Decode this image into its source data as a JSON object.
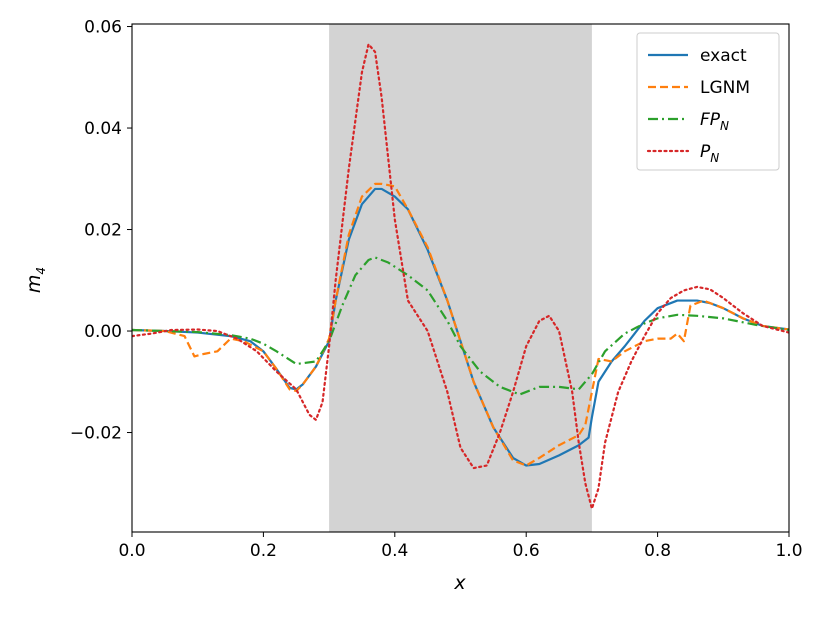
{
  "chart_data": {
    "type": "line",
    "xlabel": "x",
    "ylabel": "m",
    "ylabel_sub": "4",
    "xlim": [
      0.0,
      1.0
    ],
    "ylim": [
      -0.0396,
      0.0605
    ],
    "x_ticks": [
      0.0,
      0.2,
      0.4,
      0.6,
      0.8,
      1.0
    ],
    "x_tick_labels": [
      "0.0",
      "0.2",
      "0.4",
      "0.6",
      "0.8",
      "1.0"
    ],
    "y_ticks": [
      -0.02,
      0.0,
      0.02,
      0.04,
      0.06
    ],
    "y_tick_labels": [
      "−0.02",
      "0.00",
      "0.02",
      "0.04",
      "0.06"
    ],
    "shaded_region": {
      "x": [
        0.3,
        0.7
      ],
      "color": "#d3d3d3"
    },
    "legend": {
      "placement": "top-right"
    },
    "series": [
      {
        "name": "exact",
        "name_main": "exact",
        "name_sub": "",
        "color": "#1f77b4",
        "dash": "solid",
        "points": [
          [
            0.0,
            0.0002
          ],
          [
            0.05,
            0.0
          ],
          [
            0.1,
            -0.0003
          ],
          [
            0.15,
            -0.001
          ],
          [
            0.18,
            -0.002
          ],
          [
            0.2,
            -0.004
          ],
          [
            0.22,
            -0.0075
          ],
          [
            0.24,
            -0.0112
          ],
          [
            0.25,
            -0.0115
          ],
          [
            0.26,
            -0.0105
          ],
          [
            0.28,
            -0.007
          ],
          [
            0.3,
            -0.002
          ],
          [
            0.31,
            0.006
          ],
          [
            0.33,
            0.018
          ],
          [
            0.35,
            0.025
          ],
          [
            0.37,
            0.028
          ],
          [
            0.38,
            0.028
          ],
          [
            0.4,
            0.0265
          ],
          [
            0.42,
            0.024
          ],
          [
            0.45,
            0.016
          ],
          [
            0.48,
            0.006
          ],
          [
            0.5,
            -0.002
          ],
          [
            0.52,
            -0.01
          ],
          [
            0.55,
            -0.019
          ],
          [
            0.58,
            -0.025
          ],
          [
            0.6,
            -0.0265
          ],
          [
            0.62,
            -0.0262
          ],
          [
            0.65,
            -0.0245
          ],
          [
            0.68,
            -0.0225
          ],
          [
            0.695,
            -0.021
          ],
          [
            0.7,
            -0.017
          ],
          [
            0.71,
            -0.01
          ],
          [
            0.73,
            -0.006
          ],
          [
            0.75,
            -0.003
          ],
          [
            0.78,
            0.002
          ],
          [
            0.8,
            0.0045
          ],
          [
            0.83,
            0.006
          ],
          [
            0.86,
            0.006
          ],
          [
            0.88,
            0.0055
          ],
          [
            0.9,
            0.0045
          ],
          [
            0.93,
            0.0025
          ],
          [
            0.96,
            0.001
          ],
          [
            1.0,
            0.0003
          ]
        ]
      },
      {
        "name": "LGNM",
        "name_main": "LGNM",
        "name_sub": "",
        "color": "#ff7f0e",
        "dash": "dashed",
        "points": [
          [
            0.0,
            0.0002
          ],
          [
            0.05,
            0.0
          ],
          [
            0.08,
            -0.001
          ],
          [
            0.095,
            -0.005
          ],
          [
            0.11,
            -0.0045
          ],
          [
            0.13,
            -0.004
          ],
          [
            0.15,
            -0.0015
          ],
          [
            0.17,
            -0.002
          ],
          [
            0.2,
            -0.004
          ],
          [
            0.22,
            -0.0075
          ],
          [
            0.24,
            -0.0115
          ],
          [
            0.25,
            -0.0118
          ],
          [
            0.26,
            -0.0105
          ],
          [
            0.28,
            -0.007
          ],
          [
            0.3,
            -0.0015
          ],
          [
            0.31,
            0.006
          ],
          [
            0.33,
            0.019
          ],
          [
            0.35,
            0.0265
          ],
          [
            0.37,
            0.029
          ],
          [
            0.38,
            0.029
          ],
          [
            0.4,
            0.0285
          ],
          [
            0.42,
            0.024
          ],
          [
            0.45,
            0.0165
          ],
          [
            0.48,
            0.006
          ],
          [
            0.5,
            -0.002
          ],
          [
            0.52,
            -0.01
          ],
          [
            0.55,
            -0.019
          ],
          [
            0.58,
            -0.0255
          ],
          [
            0.6,
            -0.0265
          ],
          [
            0.62,
            -0.025
          ],
          [
            0.65,
            -0.0225
          ],
          [
            0.68,
            -0.0205
          ],
          [
            0.69,
            -0.0185
          ],
          [
            0.7,
            -0.012
          ],
          [
            0.71,
            -0.0055
          ],
          [
            0.73,
            -0.006
          ],
          [
            0.75,
            -0.004
          ],
          [
            0.78,
            -0.002
          ],
          [
            0.8,
            -0.0015
          ],
          [
            0.82,
            -0.0015
          ],
          [
            0.83,
            -0.0005
          ],
          [
            0.84,
            -0.002
          ],
          [
            0.85,
            0.005
          ],
          [
            0.87,
            0.006
          ],
          [
            0.9,
            0.0045
          ],
          [
            0.93,
            0.0025
          ],
          [
            0.96,
            0.001
          ],
          [
            1.0,
            0.0003
          ]
        ]
      },
      {
        "name": "FP_N",
        "name_main": "FP",
        "name_sub": "N",
        "color": "#2ca02c",
        "dash": "dashdot",
        "points": [
          [
            0.0,
            0.0002
          ],
          [
            0.05,
            0.0
          ],
          [
            0.1,
            -0.0002
          ],
          [
            0.15,
            -0.0008
          ],
          [
            0.18,
            -0.0015
          ],
          [
            0.2,
            -0.0025
          ],
          [
            0.22,
            -0.004
          ],
          [
            0.25,
            -0.0065
          ],
          [
            0.28,
            -0.006
          ],
          [
            0.3,
            -0.002
          ],
          [
            0.32,
            0.005
          ],
          [
            0.34,
            0.011
          ],
          [
            0.36,
            0.014
          ],
          [
            0.37,
            0.0145
          ],
          [
            0.39,
            0.0135
          ],
          [
            0.42,
            0.011
          ],
          [
            0.45,
            0.008
          ],
          [
            0.48,
            0.002
          ],
          [
            0.5,
            -0.003
          ],
          [
            0.53,
            -0.008
          ],
          [
            0.56,
            -0.011
          ],
          [
            0.59,
            -0.0125
          ],
          [
            0.62,
            -0.011
          ],
          [
            0.65,
            -0.011
          ],
          [
            0.68,
            -0.0115
          ],
          [
            0.7,
            -0.0085
          ],
          [
            0.72,
            -0.004
          ],
          [
            0.75,
            -0.0005
          ],
          [
            0.78,
            0.0015
          ],
          [
            0.8,
            0.0025
          ],
          [
            0.83,
            0.0032
          ],
          [
            0.86,
            0.003
          ],
          [
            0.9,
            0.0025
          ],
          [
            0.95,
            0.0012
          ],
          [
            1.0,
            0.0002
          ]
        ]
      },
      {
        "name": "P_N",
        "name_main": "P",
        "name_sub": "N",
        "color": "#d62728",
        "dash": "dotted",
        "points": [
          [
            0.0,
            -0.001
          ],
          [
            0.03,
            -0.0005
          ],
          [
            0.06,
            0.0002
          ],
          [
            0.1,
            0.0003
          ],
          [
            0.13,
            0.0
          ],
          [
            0.16,
            -0.0015
          ],
          [
            0.19,
            -0.004
          ],
          [
            0.22,
            -0.008
          ],
          [
            0.25,
            -0.0115
          ],
          [
            0.27,
            -0.0165
          ],
          [
            0.28,
            -0.0175
          ],
          [
            0.29,
            -0.014
          ],
          [
            0.3,
            -0.003
          ],
          [
            0.31,
            0.01
          ],
          [
            0.33,
            0.032
          ],
          [
            0.35,
            0.051
          ],
          [
            0.36,
            0.0565
          ],
          [
            0.37,
            0.055
          ],
          [
            0.38,
            0.046
          ],
          [
            0.4,
            0.022
          ],
          [
            0.42,
            0.006
          ],
          [
            0.45,
            0.0
          ],
          [
            0.48,
            -0.012
          ],
          [
            0.5,
            -0.023
          ],
          [
            0.52,
            -0.027
          ],
          [
            0.54,
            -0.0265
          ],
          [
            0.56,
            -0.02
          ],
          [
            0.58,
            -0.012
          ],
          [
            0.6,
            -0.003
          ],
          [
            0.62,
            0.002
          ],
          [
            0.635,
            0.003
          ],
          [
            0.65,
            0.0
          ],
          [
            0.67,
            -0.012
          ],
          [
            0.68,
            -0.022
          ],
          [
            0.69,
            -0.03
          ],
          [
            0.7,
            -0.035
          ],
          [
            0.71,
            -0.031
          ],
          [
            0.72,
            -0.022
          ],
          [
            0.74,
            -0.012
          ],
          [
            0.76,
            -0.006
          ],
          [
            0.78,
            -0.001
          ],
          [
            0.8,
            0.0035
          ],
          [
            0.82,
            0.0065
          ],
          [
            0.84,
            0.008
          ],
          [
            0.86,
            0.0087
          ],
          [
            0.88,
            0.0082
          ],
          [
            0.9,
            0.0065
          ],
          [
            0.93,
            0.0035
          ],
          [
            0.96,
            0.001
          ],
          [
            1.0,
            -0.0003
          ]
        ]
      }
    ]
  }
}
